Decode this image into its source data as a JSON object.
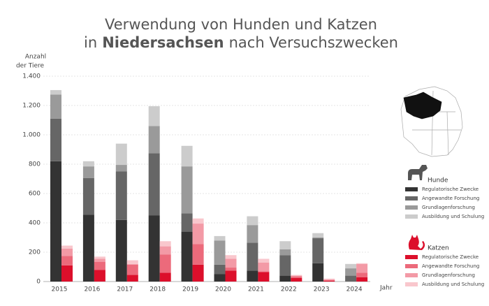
{
  "chart_data": {
    "type": "grouped_stacked_bar",
    "title_line1": "Verwendung von Hunden und Katzen",
    "title_line2": [
      "in",
      "Niedersachsen",
      "nach Versuchszwecken"
    ],
    "ylabel": [
      "Anzahl",
      "der Tiere"
    ],
    "xlabel": "Jahr",
    "categories": [
      "2015",
      "2016",
      "2017",
      "2018",
      "2019",
      "2020",
      "2021",
      "2022",
      "2023",
      "2024"
    ],
    "ylim": [
      0,
      1400
    ],
    "yticks": [
      0,
      200,
      400,
      600,
      800,
      {
        "value": 1000,
        "label": "1.000"
      },
      {
        "value": 1200,
        "label": "1.200"
      },
      {
        "value": 1400,
        "label": "1.400"
      }
    ],
    "grid": true,
    "groups": [
      {
        "name": "Hunde",
        "series": [
          {
            "name": "Regulatorische Zwecke",
            "color": "#333333",
            "values": [
              820,
              455,
              420,
              450,
              340,
              50,
              75,
              40,
              125,
              0
            ]
          },
          {
            "name": "Angewandte Forschung",
            "color": "#666666",
            "values": [
              290,
              250,
              330,
              425,
              125,
              65,
              190,
              140,
              170,
              40
            ]
          },
          {
            "name": "Grundlagenforschung",
            "color": "#9a9a9a",
            "values": [
              165,
              80,
              45,
              185,
              320,
              165,
              120,
              40,
              5,
              50
            ]
          },
          {
            "name": "Ausbildung und Schulung",
            "color": "#cccccc",
            "values": [
              30,
              35,
              145,
              135,
              140,
              30,
              60,
              55,
              30,
              30
            ]
          }
        ]
      },
      {
        "name": "Katzen",
        "series": [
          {
            "name": "Regulatorische Zwecke",
            "color": "#dc0f2b",
            "values": [
              110,
              80,
              45,
              60,
              115,
              75,
              65,
              25,
              5,
              30
            ]
          },
          {
            "name": "Angewandte Forschung",
            "color": "#ec6a7b",
            "values": [
              65,
              55,
              70,
              125,
              140,
              20,
              5,
              10,
              5,
              30
            ]
          },
          {
            "name": "Grundlagenforschung",
            "color": "#f39aa6",
            "values": [
              50,
              20,
              5,
              55,
              140,
              60,
              60,
              5,
              5,
              60
            ]
          },
          {
            "name": "Ausbildung und Schulung",
            "color": "#f9c7cd",
            "values": [
              20,
              15,
              25,
              35,
              35,
              25,
              25,
              5,
              5,
              5
            ]
          }
        ]
      }
    ]
  }
}
